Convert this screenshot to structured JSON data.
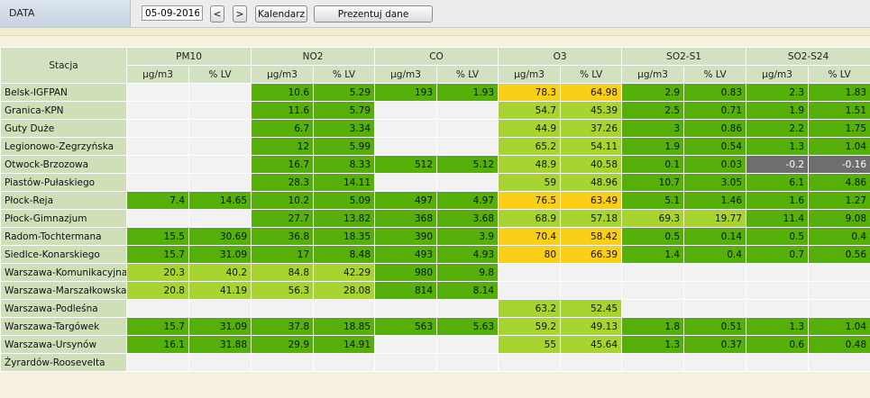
{
  "toolbar": {
    "label": "DATA",
    "date_value": "05-09-2016",
    "prev_label": "<",
    "next_label": ">",
    "calendar_label": "Kalendarz",
    "present_label": "Prezentuj dane"
  },
  "table": {
    "station_header": "Stacja",
    "pollutants": [
      "PM10",
      "NO2",
      "CO",
      "O3",
      "SO2-S1",
      "SO2-S24"
    ],
    "unit_label": "µg/m3",
    "pct_label": "% LV",
    "colors": {
      "dg": "#55b00a",
      "lg": "#a8d42f",
      "y": "#fbcf18",
      "gr": "#6e6e6e",
      "e": "#f2f2f2"
    },
    "rows": [
      {
        "station": "Belsk-IGFPAN",
        "cells": [
          [
            "",
            "e"
          ],
          [
            "",
            "e"
          ],
          [
            "10.6",
            "dg"
          ],
          [
            "5.29",
            "dg"
          ],
          [
            "193",
            "dg"
          ],
          [
            "1.93",
            "dg"
          ],
          [
            "78.3",
            "y"
          ],
          [
            "64.98",
            "y"
          ],
          [
            "2.9",
            "dg"
          ],
          [
            "0.83",
            "dg"
          ],
          [
            "2.3",
            "dg"
          ],
          [
            "1.83",
            "dg"
          ]
        ]
      },
      {
        "station": "Granica-KPN",
        "cells": [
          [
            "",
            "e"
          ],
          [
            "",
            "e"
          ],
          [
            "11.6",
            "dg"
          ],
          [
            "5.79",
            "dg"
          ],
          [
            "",
            "e"
          ],
          [
            "",
            "e"
          ],
          [
            "54.7",
            "lg"
          ],
          [
            "45.39",
            "lg"
          ],
          [
            "2.5",
            "dg"
          ],
          [
            "0.71",
            "dg"
          ],
          [
            "1.9",
            "dg"
          ],
          [
            "1.51",
            "dg"
          ]
        ]
      },
      {
        "station": "Guty Duże",
        "cells": [
          [
            "",
            "e"
          ],
          [
            "",
            "e"
          ],
          [
            "6.7",
            "dg"
          ],
          [
            "3.34",
            "dg"
          ],
          [
            "",
            "e"
          ],
          [
            "",
            "e"
          ],
          [
            "44.9",
            "lg"
          ],
          [
            "37.26",
            "lg"
          ],
          [
            "3",
            "dg"
          ],
          [
            "0.86",
            "dg"
          ],
          [
            "2.2",
            "dg"
          ],
          [
            "1.75",
            "dg"
          ]
        ]
      },
      {
        "station": "Legionowo-Zegrzyńska",
        "cells": [
          [
            "",
            "e"
          ],
          [
            "",
            "e"
          ],
          [
            "12",
            "dg"
          ],
          [
            "5.99",
            "dg"
          ],
          [
            "",
            "e"
          ],
          [
            "",
            "e"
          ],
          [
            "65.2",
            "lg"
          ],
          [
            "54.11",
            "lg"
          ],
          [
            "1.9",
            "dg"
          ],
          [
            "0.54",
            "dg"
          ],
          [
            "1.3",
            "dg"
          ],
          [
            "1.04",
            "dg"
          ]
        ]
      },
      {
        "station": "Otwock-Brzozowa",
        "cells": [
          [
            "",
            "e"
          ],
          [
            "",
            "e"
          ],
          [
            "16.7",
            "dg"
          ],
          [
            "8.33",
            "dg"
          ],
          [
            "512",
            "dg"
          ],
          [
            "5.12",
            "dg"
          ],
          [
            "48.9",
            "lg"
          ],
          [
            "40.58",
            "lg"
          ],
          [
            "0.1",
            "dg"
          ],
          [
            "0.03",
            "dg"
          ],
          [
            "-0.2",
            "gr"
          ],
          [
            "-0.16",
            "gr"
          ]
        ]
      },
      {
        "station": "Piastów-Pułaskiego",
        "cells": [
          [
            "",
            "e"
          ],
          [
            "",
            "e"
          ],
          [
            "28.3",
            "dg"
          ],
          [
            "14.11",
            "dg"
          ],
          [
            "",
            "e"
          ],
          [
            "",
            "e"
          ],
          [
            "59",
            "lg"
          ],
          [
            "48.96",
            "lg"
          ],
          [
            "10.7",
            "dg"
          ],
          [
            "3.05",
            "dg"
          ],
          [
            "6.1",
            "dg"
          ],
          [
            "4.86",
            "dg"
          ]
        ]
      },
      {
        "station": "Płock-Reja",
        "cells": [
          [
            "7.4",
            "dg"
          ],
          [
            "14.65",
            "dg"
          ],
          [
            "10.2",
            "dg"
          ],
          [
            "5.09",
            "dg"
          ],
          [
            "497",
            "dg"
          ],
          [
            "4.97",
            "dg"
          ],
          [
            "76.5",
            "y"
          ],
          [
            "63.49",
            "y"
          ],
          [
            "5.1",
            "dg"
          ],
          [
            "1.46",
            "dg"
          ],
          [
            "1.6",
            "dg"
          ],
          [
            "1.27",
            "dg"
          ]
        ]
      },
      {
        "station": "Płock-Gimnazjum",
        "cells": [
          [
            "",
            "e"
          ],
          [
            "",
            "e"
          ],
          [
            "27.7",
            "dg"
          ],
          [
            "13.82",
            "dg"
          ],
          [
            "368",
            "dg"
          ],
          [
            "3.68",
            "dg"
          ],
          [
            "68.9",
            "lg"
          ],
          [
            "57.18",
            "lg"
          ],
          [
            "69.3",
            "lg"
          ],
          [
            "19.77",
            "lg"
          ],
          [
            "11.4",
            "dg"
          ],
          [
            "9.08",
            "dg"
          ]
        ]
      },
      {
        "station": "Radom-Tochtermana",
        "cells": [
          [
            "15.5",
            "dg"
          ],
          [
            "30.69",
            "dg"
          ],
          [
            "36.8",
            "dg"
          ],
          [
            "18.35",
            "dg"
          ],
          [
            "390",
            "dg"
          ],
          [
            "3.9",
            "dg"
          ],
          [
            "70.4",
            "y"
          ],
          [
            "58.42",
            "y"
          ],
          [
            "0.5",
            "dg"
          ],
          [
            "0.14",
            "dg"
          ],
          [
            "0.5",
            "dg"
          ],
          [
            "0.4",
            "dg"
          ]
        ]
      },
      {
        "station": "Siedlce-Konarskiego",
        "cells": [
          [
            "15.7",
            "dg"
          ],
          [
            "31.09",
            "dg"
          ],
          [
            "17",
            "dg"
          ],
          [
            "8.48",
            "dg"
          ],
          [
            "493",
            "dg"
          ],
          [
            "4.93",
            "dg"
          ],
          [
            "80",
            "y"
          ],
          [
            "66.39",
            "y"
          ],
          [
            "1.4",
            "dg"
          ],
          [
            "0.4",
            "dg"
          ],
          [
            "0.7",
            "dg"
          ],
          [
            "0.56",
            "dg"
          ]
        ]
      },
      {
        "station": "Warszawa-Komunikacyjna",
        "cells": [
          [
            "20.3",
            "lg"
          ],
          [
            "40.2",
            "lg"
          ],
          [
            "84.8",
            "lg"
          ],
          [
            "42.29",
            "lg"
          ],
          [
            "980",
            "dg"
          ],
          [
            "9.8",
            "dg"
          ],
          [
            "",
            "e"
          ],
          [
            "",
            "e"
          ],
          [
            "",
            "e"
          ],
          [
            "",
            "e"
          ],
          [
            "",
            "e"
          ],
          [
            "",
            "e"
          ]
        ]
      },
      {
        "station": "Warszawa-Marszałkowska",
        "cells": [
          [
            "20.8",
            "lg"
          ],
          [
            "41.19",
            "lg"
          ],
          [
            "56.3",
            "lg"
          ],
          [
            "28.08",
            "lg"
          ],
          [
            "814",
            "dg"
          ],
          [
            "8.14",
            "dg"
          ],
          [
            "",
            "e"
          ],
          [
            "",
            "e"
          ],
          [
            "",
            "e"
          ],
          [
            "",
            "e"
          ],
          [
            "",
            "e"
          ],
          [
            "",
            "e"
          ]
        ]
      },
      {
        "station": "Warszawa-Podleśna",
        "cells": [
          [
            "",
            "e"
          ],
          [
            "",
            "e"
          ],
          [
            "",
            "e"
          ],
          [
            "",
            "e"
          ],
          [
            "",
            "e"
          ],
          [
            "",
            "e"
          ],
          [
            "63.2",
            "lg"
          ],
          [
            "52.45",
            "lg"
          ],
          [
            "",
            "e"
          ],
          [
            "",
            "e"
          ],
          [
            "",
            "e"
          ],
          [
            "",
            "e"
          ]
        ]
      },
      {
        "station": "Warszawa-Targówek",
        "cells": [
          [
            "15.7",
            "dg"
          ],
          [
            "31.09",
            "dg"
          ],
          [
            "37.8",
            "dg"
          ],
          [
            "18.85",
            "dg"
          ],
          [
            "563",
            "dg"
          ],
          [
            "5.63",
            "dg"
          ],
          [
            "59.2",
            "lg"
          ],
          [
            "49.13",
            "lg"
          ],
          [
            "1.8",
            "dg"
          ],
          [
            "0.51",
            "dg"
          ],
          [
            "1.3",
            "dg"
          ],
          [
            "1.04",
            "dg"
          ]
        ]
      },
      {
        "station": "Warszawa-Ursynów",
        "cells": [
          [
            "16.1",
            "dg"
          ],
          [
            "31.88",
            "dg"
          ],
          [
            "29.9",
            "dg"
          ],
          [
            "14.91",
            "dg"
          ],
          [
            "",
            "e"
          ],
          [
            "",
            "e"
          ],
          [
            "55",
            "lg"
          ],
          [
            "45.64",
            "lg"
          ],
          [
            "1.3",
            "dg"
          ],
          [
            "0.37",
            "dg"
          ],
          [
            "0.6",
            "dg"
          ],
          [
            "0.48",
            "dg"
          ]
        ]
      },
      {
        "station": "Żyrardów-Roosevelta",
        "cells": [
          [
            "",
            "e"
          ],
          [
            "",
            "e"
          ],
          [
            "",
            "e"
          ],
          [
            "",
            "e"
          ],
          [
            "",
            "e"
          ],
          [
            "",
            "e"
          ],
          [
            "",
            "e"
          ],
          [
            "",
            "e"
          ],
          [
            "",
            "e"
          ],
          [
            "",
            "e"
          ],
          [
            "",
            "e"
          ],
          [
            "",
            "e"
          ]
        ]
      }
    ]
  }
}
